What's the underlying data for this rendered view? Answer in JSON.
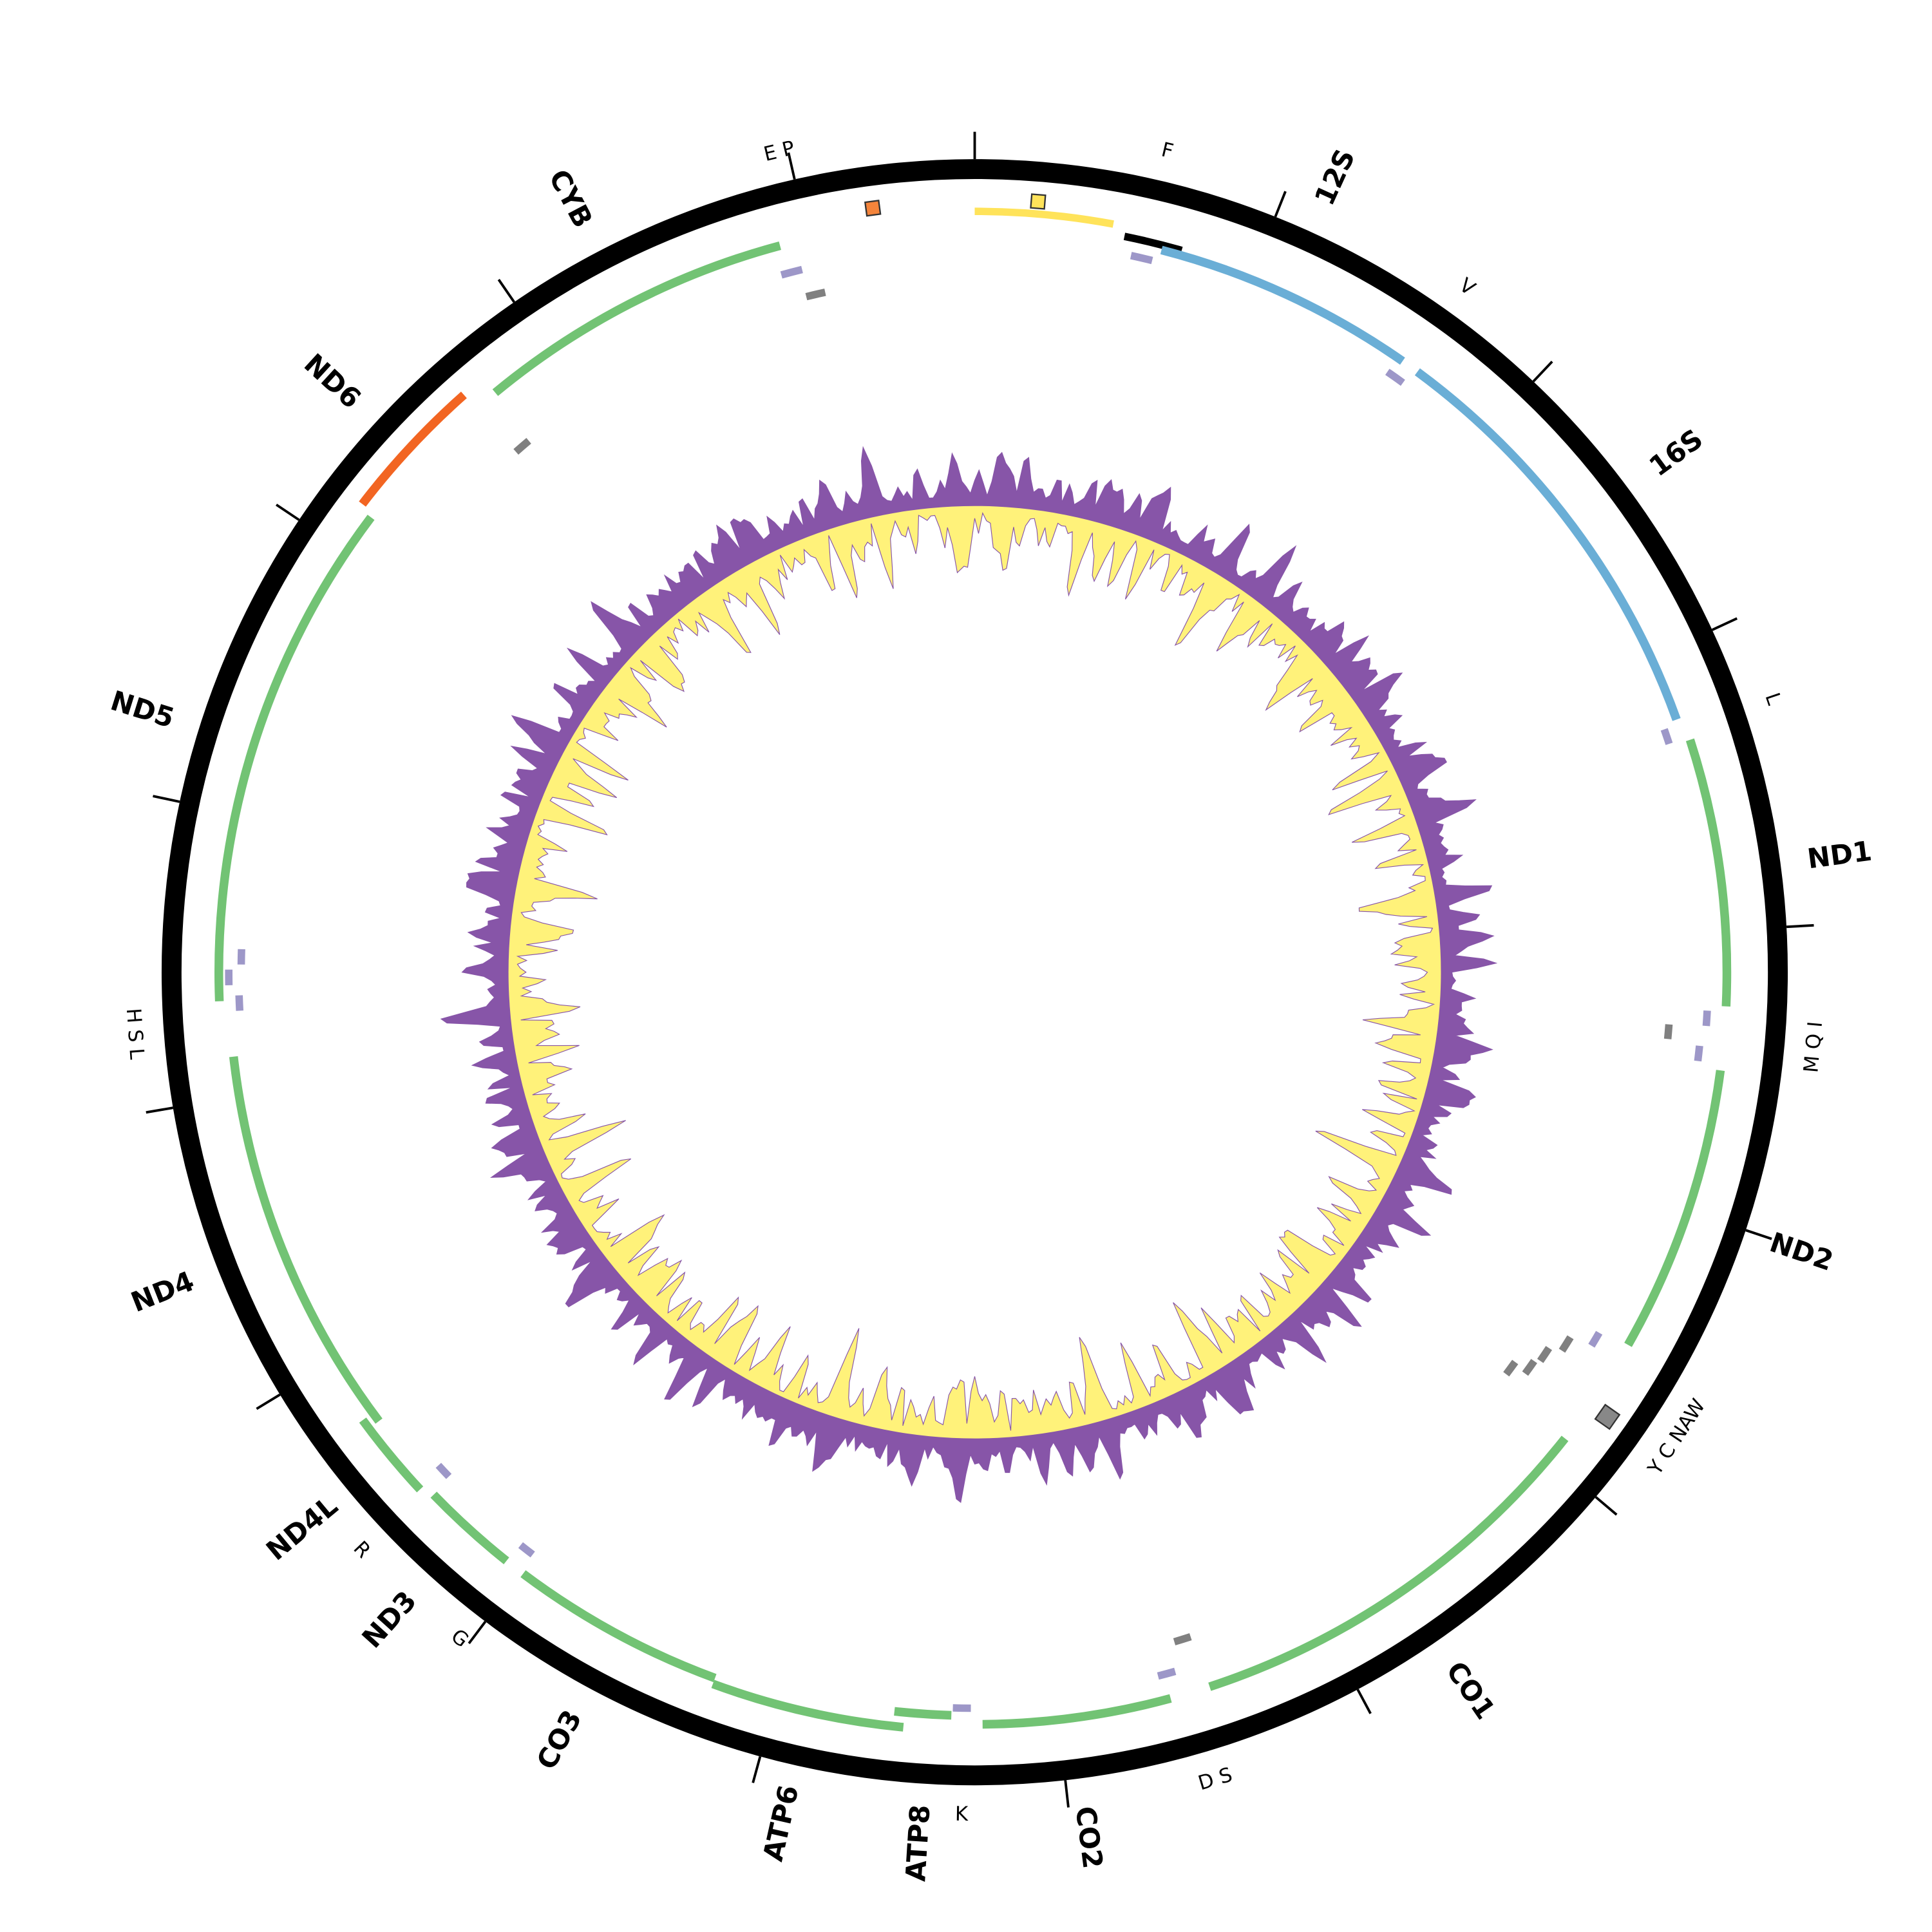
{
  "labels": [
    "E P",
    "F",
    "12S",
    "V",
    "16S",
    "L",
    "ND1",
    "M Q I",
    "ND2",
    "Y C NAW",
    "CO1",
    "D S",
    "CO2",
    "K",
    "ATP8",
    "ATP6",
    "CO3",
    "G",
    "ND3",
    "R",
    "ND4L",
    "ND4",
    "H S L",
    "ND5",
    "ND6",
    "CYB"
  ]
}
